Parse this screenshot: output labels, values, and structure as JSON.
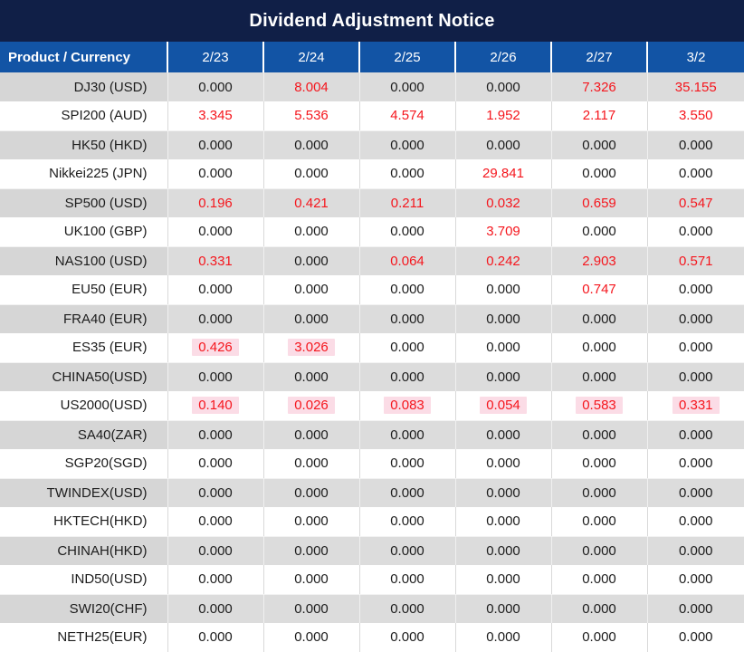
{
  "title": "Dividend Adjustment Notice",
  "colors": {
    "title_bg": "#101f47",
    "header_bg": "#1254a5",
    "header_text": "#ffffff",
    "red": "#f5161d",
    "highlight_pink": "#fbdce6",
    "row_gray": "#dcdcdc",
    "row_gray_product": "#d6d6d6",
    "text": "#1c1c1c"
  },
  "table": {
    "columns": [
      "Product / Currency",
      "2/23",
      "2/24",
      "2/25",
      "2/26",
      "2/27",
      "3/2"
    ],
    "rows": [
      {
        "product": "DJ30 (USD)",
        "values": [
          "0.000",
          "8.004",
          "0.000",
          "0.000",
          "7.326",
          "35.155"
        ],
        "styles": [
          "",
          "r",
          "",
          "",
          "r",
          "r"
        ]
      },
      {
        "product": "SPI200 (AUD)",
        "values": [
          "3.345",
          "5.536",
          "4.574",
          "1.952",
          "2.117",
          "3.550"
        ],
        "styles": [
          "r",
          "r",
          "r",
          "r",
          "r",
          "r"
        ]
      },
      {
        "product": "HK50 (HKD)",
        "values": [
          "0.000",
          "0.000",
          "0.000",
          "0.000",
          "0.000",
          "0.000"
        ],
        "styles": [
          "",
          "",
          "",
          "",
          "",
          ""
        ]
      },
      {
        "product": "Nikkei225 (JPN)",
        "values": [
          "0.000",
          "0.000",
          "0.000",
          "29.841",
          "0.000",
          "0.000"
        ],
        "styles": [
          "",
          "",
          "",
          "r",
          "",
          ""
        ]
      },
      {
        "product": "SP500 (USD)",
        "values": [
          "0.196",
          "0.421",
          "0.211",
          "0.032",
          "0.659",
          "0.547"
        ],
        "styles": [
          "r",
          "r",
          "r",
          "r",
          "r",
          "r"
        ]
      },
      {
        "product": "UK100 (GBP)",
        "values": [
          "0.000",
          "0.000",
          "0.000",
          "3.709",
          "0.000",
          "0.000"
        ],
        "styles": [
          "",
          "",
          "",
          "r",
          "",
          ""
        ]
      },
      {
        "product": "NAS100 (USD)",
        "values": [
          "0.331",
          "0.000",
          "0.064",
          "0.242",
          "2.903",
          "0.571"
        ],
        "styles": [
          "r",
          "",
          "r",
          "r",
          "r",
          "r"
        ]
      },
      {
        "product": "EU50 (EUR)",
        "values": [
          "0.000",
          "0.000",
          "0.000",
          "0.000",
          "0.747",
          "0.000"
        ],
        "styles": [
          "",
          "",
          "",
          "",
          "r",
          ""
        ]
      },
      {
        "product": "FRA40 (EUR)",
        "values": [
          "0.000",
          "0.000",
          "0.000",
          "0.000",
          "0.000",
          "0.000"
        ],
        "styles": [
          "",
          "",
          "",
          "",
          "",
          ""
        ]
      },
      {
        "product": "ES35 (EUR)",
        "values": [
          "0.426",
          "3.026",
          "0.000",
          "0.000",
          "0.000",
          "0.000"
        ],
        "styles": [
          "rh",
          "rh",
          "",
          "",
          "",
          ""
        ]
      },
      {
        "product": "CHINA50(USD)",
        "values": [
          "0.000",
          "0.000",
          "0.000",
          "0.000",
          "0.000",
          "0.000"
        ],
        "styles": [
          "",
          "",
          "",
          "",
          "",
          ""
        ]
      },
      {
        "product": "US2000(USD)",
        "values": [
          "0.140",
          "0.026",
          "0.083",
          "0.054",
          "0.583",
          "0.331"
        ],
        "styles": [
          "rh",
          "rh",
          "rh",
          "rh",
          "rh",
          "rh"
        ]
      },
      {
        "product": "SA40(ZAR)",
        "values": [
          "0.000",
          "0.000",
          "0.000",
          "0.000",
          "0.000",
          "0.000"
        ],
        "styles": [
          "",
          "",
          "",
          "",
          "",
          ""
        ]
      },
      {
        "product": "SGP20(SGD)",
        "values": [
          "0.000",
          "0.000",
          "0.000",
          "0.000",
          "0.000",
          "0.000"
        ],
        "styles": [
          "",
          "",
          "",
          "",
          "",
          ""
        ]
      },
      {
        "product": "TWINDEX(USD)",
        "values": [
          "0.000",
          "0.000",
          "0.000",
          "0.000",
          "0.000",
          "0.000"
        ],
        "styles": [
          "",
          "",
          "",
          "",
          "",
          ""
        ]
      },
      {
        "product": "HKTECH(HKD)",
        "values": [
          "0.000",
          "0.000",
          "0.000",
          "0.000",
          "0.000",
          "0.000"
        ],
        "styles": [
          "",
          "",
          "",
          "",
          "",
          ""
        ]
      },
      {
        "product": "CHINAH(HKD)",
        "values": [
          "0.000",
          "0.000",
          "0.000",
          "0.000",
          "0.000",
          "0.000"
        ],
        "styles": [
          "",
          "",
          "",
          "",
          "",
          ""
        ]
      },
      {
        "product": "IND50(USD)",
        "values": [
          "0.000",
          "0.000",
          "0.000",
          "0.000",
          "0.000",
          "0.000"
        ],
        "styles": [
          "",
          "",
          "",
          "",
          "",
          ""
        ]
      },
      {
        "product": "SWI20(CHF)",
        "values": [
          "0.000",
          "0.000",
          "0.000",
          "0.000",
          "0.000",
          "0.000"
        ],
        "styles": [
          "",
          "",
          "",
          "",
          "",
          ""
        ]
      },
      {
        "product": "NETH25(EUR)",
        "values": [
          "0.000",
          "0.000",
          "0.000",
          "0.000",
          "0.000",
          "0.000"
        ],
        "styles": [
          "",
          "",
          "",
          "",
          "",
          ""
        ]
      }
    ]
  }
}
